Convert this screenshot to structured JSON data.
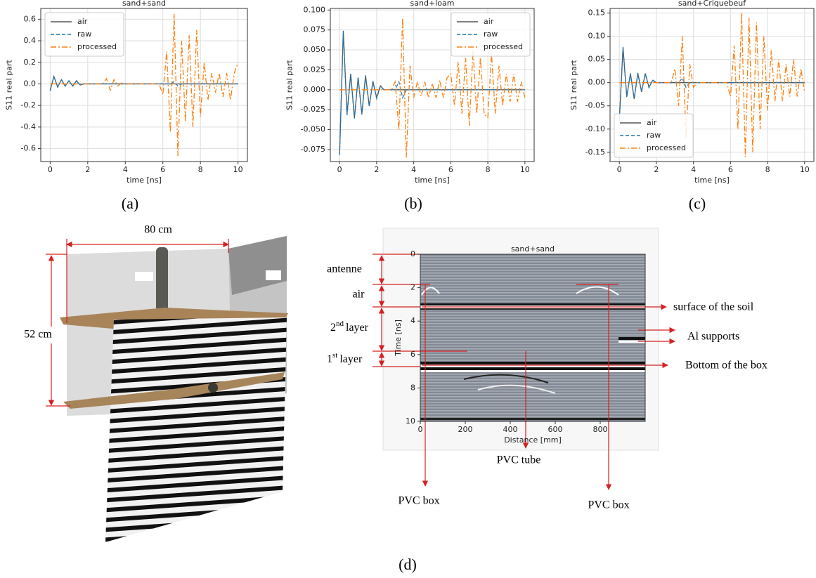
{
  "chart_data": [
    {
      "type": "line",
      "title": "sand+sand",
      "xlabel": "time [ns]",
      "ylabel": "S11 real part",
      "xlim": [
        -0.5,
        10.5
      ],
      "ylim": [
        -0.72,
        0.7
      ],
      "xticks": [
        0,
        2,
        4,
        6,
        8,
        10
      ],
      "yticks": [
        -0.6,
        -0.4,
        -0.2,
        {
          "value": 0,
          "label": "0.0"
        },
        0.2,
        0.4,
        0.6
      ],
      "grid": true,
      "legend": "upper left",
      "x": [
        0,
        0.2,
        0.4,
        0.6,
        0.8,
        1,
        1.2,
        1.4,
        1.6,
        1.8,
        2,
        2.2,
        2.4,
        2.6,
        2.8,
        3,
        3.2,
        3.4,
        3.6,
        3.8,
        4,
        4.2,
        4.4,
        4.6,
        4.8,
        5,
        5.2,
        5.4,
        5.6,
        5.8,
        6,
        6.2,
        6.4,
        6.6,
        6.8,
        7,
        7.2,
        7.4,
        7.6,
        7.8,
        8,
        8.2,
        8.4,
        8.6,
        8.8,
        9,
        9.2,
        9.4,
        9.6,
        9.8,
        10
      ],
      "series": [
        {
          "name": "air",
          "color": "#555555",
          "linestyle": "solid",
          "values": [
            -0.06,
            0.07,
            -0.03,
            0.04,
            -0.02,
            0.03,
            -0.02,
            0.03,
            -0.01,
            0,
            0,
            0,
            0,
            0,
            0,
            0,
            0,
            0,
            0,
            0,
            0,
            0,
            0,
            0,
            0,
            0,
            0,
            0,
            0,
            0,
            0,
            0,
            0,
            0,
            0,
            0,
            0,
            0,
            0,
            0,
            0,
            0,
            0,
            0,
            0,
            0,
            0,
            0,
            0,
            0,
            0
          ]
        },
        {
          "name": "raw",
          "color": "#1f77b4",
          "linestyle": "dashed",
          "values": [
            -0.065,
            0.068,
            -0.028,
            0.038,
            -0.022,
            0.028,
            -0.018,
            0.028,
            -0.012,
            0.002,
            0,
            0,
            0,
            0,
            0,
            0,
            0,
            0,
            0,
            0,
            0,
            0,
            0,
            0,
            0,
            0,
            0,
            0,
            0,
            0,
            0,
            0,
            0,
            0.02,
            -0.02,
            0,
            0,
            0,
            0,
            0,
            0,
            0,
            0,
            0,
            0,
            0,
            0,
            0,
            0,
            0,
            0
          ]
        },
        {
          "name": "processed",
          "color": "#ff7f0e",
          "linestyle": "dashdot",
          "values": [
            0,
            0,
            0,
            0,
            0,
            0,
            0,
            0,
            0,
            0,
            0,
            0,
            0,
            0,
            0,
            0.05,
            -0.06,
            0.04,
            -0.02,
            0.01,
            0,
            0,
            0,
            0,
            0,
            0,
            0,
            0,
            0,
            0,
            -0.1,
            0.3,
            -0.45,
            0.65,
            -0.67,
            0.4,
            -0.35,
            0.45,
            -0.4,
            0.5,
            -0.3,
            0.2,
            -0.15,
            0.1,
            -0.08,
            0.1,
            -0.12,
            0.1,
            -0.15,
            0.1,
            0.2
          ]
        }
      ]
    },
    {
      "type": "line",
      "title": "sand+loam",
      "xlabel": "time [ns]",
      "ylabel": "S11 real part",
      "xlim": [
        -0.5,
        10.5
      ],
      "ylim": [
        -0.09,
        0.102
      ],
      "xticks": [
        0,
        2,
        4,
        6,
        8,
        10
      ],
      "yticks": [
        -0.075,
        {
          "value": -0.05,
          "label": "-0.050"
        },
        -0.025,
        {
          "value": 0,
          "label": "0.000"
        },
        0.025,
        {
          "value": 0.05,
          "label": "0.050"
        },
        0.075,
        {
          "value": 0.1,
          "label": "0.100"
        }
      ],
      "grid": true,
      "legend": "upper right",
      "x": [
        0,
        0.2,
        0.4,
        0.6,
        0.8,
        1,
        1.2,
        1.4,
        1.6,
        1.8,
        2,
        2.2,
        2.4,
        2.6,
        2.8,
        3,
        3.2,
        3.4,
        3.6,
        3.8,
        4,
        4.2,
        4.4,
        4.6,
        4.8,
        5,
        5.2,
        5.4,
        5.6,
        5.8,
        6,
        6.2,
        6.4,
        6.6,
        6.8,
        7,
        7.2,
        7.4,
        7.6,
        7.8,
        8,
        8.2,
        8.4,
        8.6,
        8.8,
        9,
        9.2,
        9.4,
        9.6,
        9.8,
        10
      ],
      "series": [
        {
          "name": "air",
          "color": "#555555",
          "linestyle": "solid",
          "values": [
            -0.08,
            0.073,
            -0.03,
            0.02,
            -0.035,
            0.015,
            -0.03,
            0.018,
            -0.02,
            0.01,
            -0.01,
            0.005,
            0,
            0,
            0,
            0,
            0,
            0,
            0,
            0,
            0,
            0,
            0,
            0,
            0,
            0,
            0,
            0,
            0,
            0,
            0,
            0,
            0,
            0,
            0,
            0,
            0,
            0,
            0,
            0,
            0,
            0,
            0,
            0,
            0,
            0,
            0,
            0,
            0,
            0,
            0
          ]
        },
        {
          "name": "raw",
          "color": "#1f77b4",
          "linestyle": "dashed",
          "values": [
            -0.082,
            0.074,
            -0.032,
            0.019,
            -0.036,
            0.016,
            -0.031,
            0.017,
            -0.021,
            0.011,
            -0.011,
            0.004,
            0,
            0,
            0,
            0,
            0.01,
            -0.01,
            0,
            0,
            0,
            0,
            0,
            0,
            0,
            0,
            0,
            0,
            0,
            0,
            0,
            0,
            0,
            0,
            0,
            0,
            0,
            0,
            0,
            0,
            0,
            0,
            0,
            0,
            0,
            0,
            0,
            0,
            0,
            0,
            0
          ]
        },
        {
          "name": "processed",
          "color": "#ff7f0e",
          "linestyle": "dashdot",
          "values": [
            0,
            0,
            0,
            0,
            0,
            0,
            0,
            0,
            0,
            0,
            0,
            0,
            0,
            0,
            0,
            0.01,
            -0.05,
            0.09,
            -0.085,
            0.03,
            -0.01,
            0.01,
            -0.008,
            0.01,
            -0.01,
            0.008,
            -0.01,
            0.012,
            -0.01,
            0.015,
            0.02,
            -0.02,
            0.035,
            -0.03,
            0.04,
            -0.045,
            0.05,
            -0.03,
            0.04,
            -0.03,
            -0.035,
            0.045,
            -0.03,
            0.03,
            -0.02,
            0.02,
            -0.015,
            0.02,
            -0.015,
            0.01,
            -0.01
          ]
        }
      ]
    },
    {
      "type": "line",
      "title": "sand+Criquebeuf",
      "xlabel": "time [ns]",
      "ylabel": "S11 real part",
      "xlim": [
        -0.5,
        10.5
      ],
      "ylim": [
        -0.17,
        0.16
      ],
      "xticks": [
        0,
        2,
        4,
        6,
        8,
        10
      ],
      "yticks": [
        -0.15,
        {
          "value": -0.1,
          "label": "-0.10"
        },
        -0.05,
        {
          "value": 0,
          "label": "0.00"
        },
        0.05,
        {
          "value": 0.1,
          "label": "0.10"
        },
        0.15
      ],
      "grid": true,
      "legend": "lower left",
      "x": [
        0,
        0.2,
        0.4,
        0.6,
        0.8,
        1,
        1.2,
        1.4,
        1.6,
        1.8,
        2,
        2.2,
        2.4,
        2.6,
        2.8,
        3,
        3.2,
        3.4,
        3.6,
        3.8,
        4,
        4.2,
        4.4,
        4.6,
        4.8,
        5,
        5.2,
        5.4,
        5.6,
        5.8,
        6,
        6.2,
        6.4,
        6.6,
        6.8,
        7,
        7.2,
        7.4,
        7.6,
        7.8,
        8,
        8.2,
        8.4,
        8.6,
        8.8,
        9,
        9.2,
        9.4,
        9.6,
        9.8,
        10
      ],
      "series": [
        {
          "name": "air",
          "color": "#555555",
          "linestyle": "solid",
          "values": [
            -0.08,
            0.075,
            -0.03,
            0.02,
            -0.035,
            0.02,
            -0.02,
            0.02,
            -0.01,
            0.005,
            0,
            0,
            0,
            0,
            0,
            0,
            0,
            0,
            0,
            0,
            0,
            0,
            0,
            0,
            0,
            0,
            0,
            0,
            0,
            0,
            0,
            0,
            0,
            0,
            0,
            0,
            0,
            0,
            0,
            0,
            0,
            0,
            0,
            0,
            0,
            0,
            0,
            0,
            0,
            0,
            0
          ]
        },
        {
          "name": "raw",
          "color": "#1f77b4",
          "linestyle": "dashed",
          "values": [
            -0.082,
            0.077,
            -0.031,
            0.019,
            -0.034,
            0.021,
            -0.019,
            0.019,
            -0.011,
            0.006,
            0,
            0,
            0,
            0,
            0,
            0,
            0,
            0.01,
            -0.01,
            0,
            0,
            0,
            0,
            0,
            0,
            0,
            0,
            0,
            0,
            0,
            0,
            0,
            0,
            0,
            0,
            0,
            0,
            0,
            0,
            0,
            0,
            0,
            0,
            0,
            0,
            0,
            0,
            0,
            0,
            0,
            0
          ]
        },
        {
          "name": "processed",
          "color": "#ff7f0e",
          "linestyle": "dashdot",
          "values": [
            0,
            0,
            0,
            0,
            0,
            0,
            0,
            0,
            0,
            0,
            0,
            0,
            0,
            0,
            0,
            0.03,
            -0.05,
            0.1,
            -0.12,
            0.04,
            -0.01,
            0,
            0,
            0,
            0,
            0,
            0,
            0,
            0,
            0,
            -0.03,
            0.08,
            -0.1,
            0.15,
            -0.16,
            0.14,
            -0.15,
            0.13,
            -0.1,
            0.1,
            -0.06,
            0.07,
            -0.04,
            0.05,
            -0.04,
            0.04,
            -0.03,
            0.05,
            -0.03,
            0.03,
            -0.02
          ]
        }
      ]
    },
    {
      "type": "radargram",
      "title": "sand+sand",
      "xlabel": "Distance [mm]",
      "ylabel": "Time [ns]",
      "xlim": [
        0,
        1000
      ],
      "ylim": [
        10,
        0
      ],
      "xticks": [
        0,
        200,
        400,
        600,
        800
      ],
      "yticks": [
        0,
        2,
        4,
        6,
        8,
        10
      ]
    }
  ],
  "figure": {
    "panel_labels": [
      "(a)",
      "(b)",
      "(c)",
      "(d)"
    ],
    "model": {
      "width": "80 cm",
      "height": "52 cm"
    },
    "layer_labels": [
      "antenne",
      "air"
    ],
    "layers": [
      {
        "num": "2",
        "sup": "nd",
        "word": "layer"
      },
      {
        "num": "1",
        "sup": "st",
        "word": "layer"
      }
    ],
    "features": [
      "surface of the soil",
      "Al supports",
      "Bottom of the box"
    ],
    "targets": [
      "PVC box",
      "PVC tube",
      "PVC box"
    ]
  }
}
